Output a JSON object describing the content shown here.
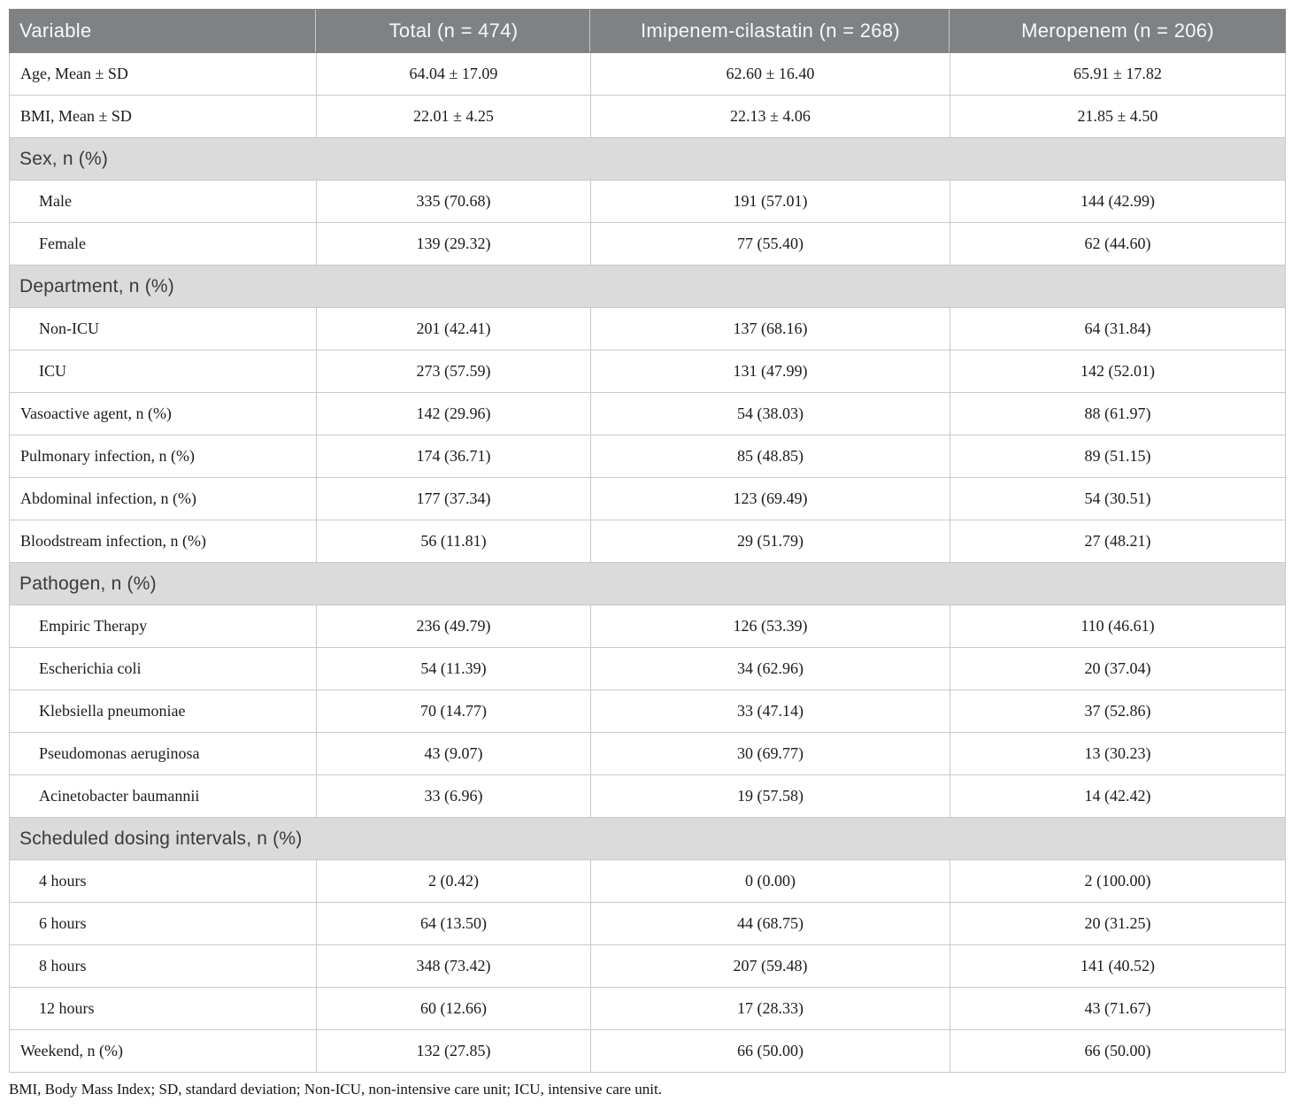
{
  "table": {
    "columns": [
      "Variable",
      "Total (n = 474)",
      "Imipenem-cilastatin (n = 268)",
      "Meropenem (n = 206)"
    ],
    "rows": [
      {
        "type": "data",
        "indent": false,
        "label": "Age, Mean ± SD",
        "values": [
          "64.04 ± 17.09",
          "62.60 ± 16.40",
          "65.91 ± 17.82"
        ]
      },
      {
        "type": "data",
        "indent": false,
        "label": "BMI, Mean ± SD",
        "values": [
          "22.01 ± 4.25",
          "22.13 ± 4.06",
          "21.85 ± 4.50"
        ]
      },
      {
        "type": "section",
        "label": "Sex, n (%)"
      },
      {
        "type": "data",
        "indent": true,
        "label": "Male",
        "values": [
          "335 (70.68)",
          "191 (57.01)",
          "144 (42.99)"
        ]
      },
      {
        "type": "data",
        "indent": true,
        "label": "Female",
        "values": [
          "139 (29.32)",
          "77 (55.40)",
          "62 (44.60)"
        ]
      },
      {
        "type": "section",
        "label": "Department, n (%)"
      },
      {
        "type": "data",
        "indent": true,
        "label": "Non-ICU",
        "values": [
          "201 (42.41)",
          "137 (68.16)",
          "64 (31.84)"
        ]
      },
      {
        "type": "data",
        "indent": true,
        "label": "ICU",
        "values": [
          "273 (57.59)",
          "131 (47.99)",
          "142 (52.01)"
        ]
      },
      {
        "type": "data",
        "indent": false,
        "label": "Vasoactive agent, n (%)",
        "values": [
          "142 (29.96)",
          "54 (38.03)",
          "88 (61.97)"
        ]
      },
      {
        "type": "data",
        "indent": false,
        "label": "Pulmonary infection, n (%)",
        "values": [
          "174 (36.71)",
          "85 (48.85)",
          "89 (51.15)"
        ]
      },
      {
        "type": "data",
        "indent": false,
        "label": "Abdominal infection, n (%)",
        "values": [
          "177 (37.34)",
          "123 (69.49)",
          "54 (30.51)"
        ]
      },
      {
        "type": "data",
        "indent": false,
        "label": "Bloodstream infection, n (%)",
        "values": [
          "56 (11.81)",
          "29 (51.79)",
          "27 (48.21)"
        ]
      },
      {
        "type": "section",
        "label": "Pathogen, n (%)"
      },
      {
        "type": "data",
        "indent": true,
        "label": "Empiric Therapy",
        "values": [
          "236 (49.79)",
          "126 (53.39)",
          "110 (46.61)"
        ]
      },
      {
        "type": "data",
        "indent": true,
        "label": "Escherichia coli",
        "values": [
          "54 (11.39)",
          "34 (62.96)",
          "20 (37.04)"
        ]
      },
      {
        "type": "data",
        "indent": true,
        "label": "Klebsiella pneumoniae",
        "values": [
          "70 (14.77)",
          "33 (47.14)",
          "37 (52.86)"
        ]
      },
      {
        "type": "data",
        "indent": true,
        "label": "Pseudomonas aeruginosa",
        "values": [
          "43 (9.07)",
          "30 (69.77)",
          "13 (30.23)"
        ]
      },
      {
        "type": "data",
        "indent": true,
        "label": "Acinetobacter baumannii",
        "values": [
          "33 (6.96)",
          "19 (57.58)",
          "14 (42.42)"
        ]
      },
      {
        "type": "section",
        "label": "Scheduled dosing intervals, n (%)"
      },
      {
        "type": "data",
        "indent": true,
        "label": "4 hours",
        "values": [
          "2 (0.42)",
          "0 (0.00)",
          "2 (100.00)"
        ]
      },
      {
        "type": "data",
        "indent": true,
        "label": "6 hours",
        "values": [
          "64 (13.50)",
          "44 (68.75)",
          "20 (31.25)"
        ]
      },
      {
        "type": "data",
        "indent": true,
        "label": "8 hours",
        "values": [
          "348 (73.42)",
          "207 (59.48)",
          "141 (40.52)"
        ]
      },
      {
        "type": "data",
        "indent": true,
        "label": "12 hours",
        "values": [
          "60 (12.66)",
          "17 (28.33)",
          "43 (71.67)"
        ]
      },
      {
        "type": "data",
        "indent": false,
        "label": "Weekend, n (%)",
        "values": [
          "132 (27.85)",
          "66 (50.00)",
          "66 (50.00)"
        ]
      }
    ],
    "footnote": "BMI, Body Mass Index; SD, standard deviation; Non-ICU, non-intensive care unit; ICU, intensive care unit."
  },
  "colors": {
    "header_bg": "#7f8285",
    "header_text": "#f8f8f8",
    "section_bg": "#dbdbdb",
    "section_text": "#3a3a3a",
    "body_text": "#1b1b1b",
    "border": "#c9c9c9"
  }
}
